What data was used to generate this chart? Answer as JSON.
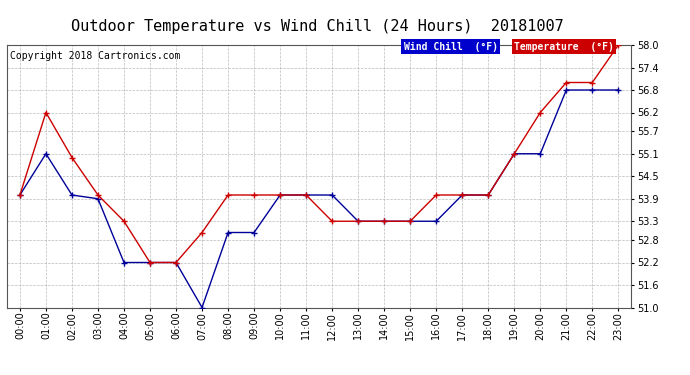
{
  "title": "Outdoor Temperature vs Wind Chill (24 Hours)  20181007",
  "copyright": "Copyright 2018 Cartronics.com",
  "background_color": "#ffffff",
  "plot_bg_color": "#ffffff",
  "grid_color": "#aaaaaa",
  "ylim": [
    51.0,
    58.0
  ],
  "yticks": [
    51.0,
    51.6,
    52.2,
    52.8,
    53.3,
    53.9,
    54.5,
    55.1,
    55.7,
    56.2,
    56.8,
    57.4,
    58.0
  ],
  "hours": [
    "00:00",
    "01:00",
    "02:00",
    "03:00",
    "04:00",
    "05:00",
    "06:00",
    "07:00",
    "08:00",
    "09:00",
    "10:00",
    "11:00",
    "12:00",
    "13:00",
    "14:00",
    "15:00",
    "16:00",
    "17:00",
    "18:00",
    "19:00",
    "20:00",
    "21:00",
    "22:00",
    "23:00"
  ],
  "temperature": [
    54.0,
    56.2,
    55.0,
    54.0,
    53.3,
    52.2,
    52.2,
    53.0,
    54.0,
    54.0,
    54.0,
    54.0,
    53.3,
    53.3,
    53.3,
    53.3,
    54.0,
    54.0,
    54.0,
    55.1,
    56.2,
    57.0,
    57.0,
    58.0
  ],
  "wind_chill": [
    54.0,
    55.1,
    54.0,
    53.9,
    52.2,
    52.2,
    52.2,
    51.0,
    53.0,
    53.0,
    54.0,
    54.0,
    54.0,
    53.3,
    53.3,
    53.3,
    53.3,
    54.0,
    54.0,
    55.1,
    55.1,
    56.8,
    56.8,
    56.8
  ],
  "temp_color": "#cc0000",
  "wind_color": "#000099",
  "legend_wind_bg": "#0000cc",
  "legend_temp_bg": "#cc0000",
  "legend_text_color": "#ffffff",
  "title_fontsize": 11,
  "axis_fontsize": 7,
  "copyright_fontsize": 7
}
